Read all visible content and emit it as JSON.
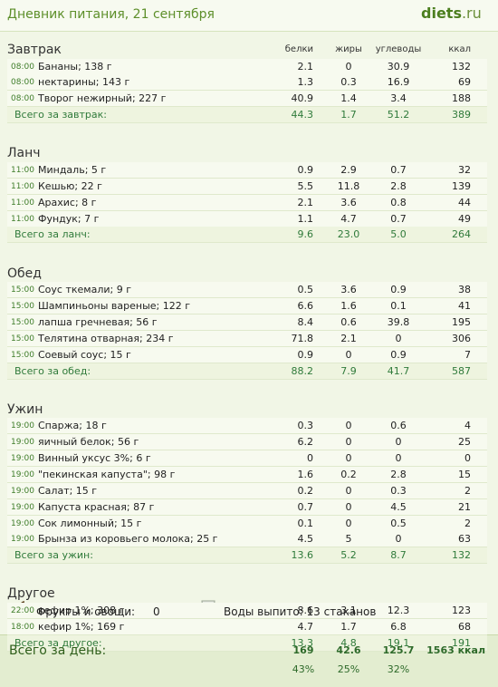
{
  "header": {
    "title": "Дневник питания, 21 сентября",
    "logo": "diets",
    "logo_suffix": ".ru"
  },
  "columns": [
    "белки",
    "жиры",
    "углеводы",
    "ккал"
  ],
  "sections": [
    {
      "title": "Завтрак",
      "rows": [
        {
          "time": "08:00",
          "name": "Бананы; 138 г",
          "values": [
            2.1,
            0,
            30.9,
            132
          ]
        },
        {
          "time": "08:00",
          "name": "нектарины; 143 г",
          "values": [
            1.3,
            0.3,
            16.9,
            69
          ]
        },
        {
          "time": "08:00",
          "name": "Творог нежирный; 227 г",
          "values": [
            40.9,
            1.4,
            3.4,
            188
          ]
        }
      ],
      "total": {
        "label": "Всего за завтрак:",
        "values": [
          44.3,
          1.7,
          51.2,
          389
        ]
      }
    },
    {
      "title": "Ланч",
      "rows": [
        {
          "time": "11:00",
          "name": "Миндаль; 5 г",
          "values": [
            0.9,
            2.9,
            0.7,
            32
          ]
        },
        {
          "time": "11:00",
          "name": "Кешью; 22 г",
          "values": [
            5.5,
            11.8,
            2.8,
            139
          ]
        },
        {
          "time": "11:00",
          "name": "Арахис; 8 г",
          "values": [
            2.1,
            3.6,
            0.8,
            44
          ]
        },
        {
          "time": "11:00",
          "name": "Фундук; 7 г",
          "values": [
            1.1,
            4.7,
            0.7,
            49
          ]
        }
      ],
      "total": {
        "label": "Всего за ланч:",
        "values": [
          9.6,
          "23.0",
          "5.0",
          264
        ]
      }
    },
    {
      "title": "Обед",
      "rows": [
        {
          "time": "15:00",
          "name": "Соус ткемали; 9 г",
          "values": [
            0.5,
            3.6,
            0.9,
            38
          ]
        },
        {
          "time": "15:00",
          "name": "Шампиньоны вареные; 122 г",
          "values": [
            6.6,
            1.6,
            0.1,
            41
          ]
        },
        {
          "time": "15:00",
          "name": "лапша гречневая; 56 г",
          "values": [
            8.4,
            0.6,
            39.8,
            195
          ]
        },
        {
          "time": "15:00",
          "name": "Телятина отварная; 234 г",
          "values": [
            71.8,
            2.1,
            0,
            306
          ]
        },
        {
          "time": "15:00",
          "name": "Соевый соус; 15 г",
          "values": [
            0.9,
            0,
            0.9,
            7
          ]
        }
      ],
      "total": {
        "label": "Всего за обед:",
        "values": [
          88.2,
          7.9,
          41.7,
          587
        ]
      }
    },
    {
      "title": "Ужин",
      "rows": [
        {
          "time": "19:00",
          "name": "Спаржа; 18 г",
          "values": [
            0.3,
            0,
            0.6,
            4
          ]
        },
        {
          "time": "19:00",
          "name": "яичный белок; 56 г",
          "values": [
            6.2,
            0,
            0,
            25
          ]
        },
        {
          "time": "19:00",
          "name": "Винный уксус 3%; 6 г",
          "values": [
            0,
            0,
            0,
            0
          ]
        },
        {
          "time": "19:00",
          "name": "\"пекинская капуста\"; 98 г",
          "values": [
            1.6,
            0.2,
            2.8,
            15
          ]
        },
        {
          "time": "19:00",
          "name": "Салат; 15 г",
          "values": [
            0.2,
            0,
            0.3,
            2
          ]
        },
        {
          "time": "19:00",
          "name": "Капуста красная; 87 г",
          "values": [
            0.7,
            0,
            4.5,
            21
          ]
        },
        {
          "time": "19:00",
          "name": "Сок лимонный; 15 г",
          "values": [
            0.1,
            0,
            0.5,
            2
          ]
        },
        {
          "time": "19:00",
          "name": "Брынза из коровьего молока; 25 г",
          "values": [
            4.5,
            5,
            0,
            63
          ]
        }
      ],
      "total": {
        "label": "Всего за ужин:",
        "values": [
          13.6,
          5.2,
          8.7,
          132
        ]
      }
    },
    {
      "title": "Другое",
      "rows": [
        {
          "time": "22:00",
          "name": "кефир 1%; 308 г",
          "values": [
            8.6,
            3.1,
            12.3,
            123
          ]
        },
        {
          "time": "18:00",
          "name": "кефир 1%; 169 г",
          "values": [
            4.7,
            1.7,
            6.8,
            68
          ]
        }
      ],
      "total": {
        "label": "Всего за другое:",
        "values": [
          13.3,
          4.8,
          19.1,
          191
        ]
      }
    }
  ],
  "summary": {
    "fruits_label": "Фрукты и овощи:",
    "fruits_value": 0,
    "water": "Воды выпито: 13 стаканов"
  },
  "day_total": {
    "label": "Всего за день:",
    "values": [
      169,
      42.6,
      125.7,
      "1563 ккал"
    ],
    "percents": [
      "43%",
      "25%",
      "32%"
    ]
  }
}
